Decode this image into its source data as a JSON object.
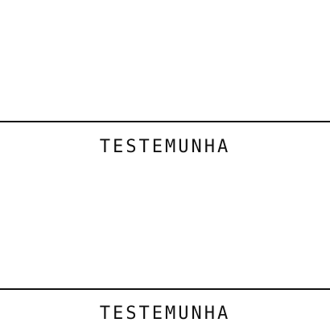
{
  "signatures": [
    {
      "label": "TESTEMUNHA"
    },
    {
      "label": "TESTEMUNHA"
    }
  ]
}
